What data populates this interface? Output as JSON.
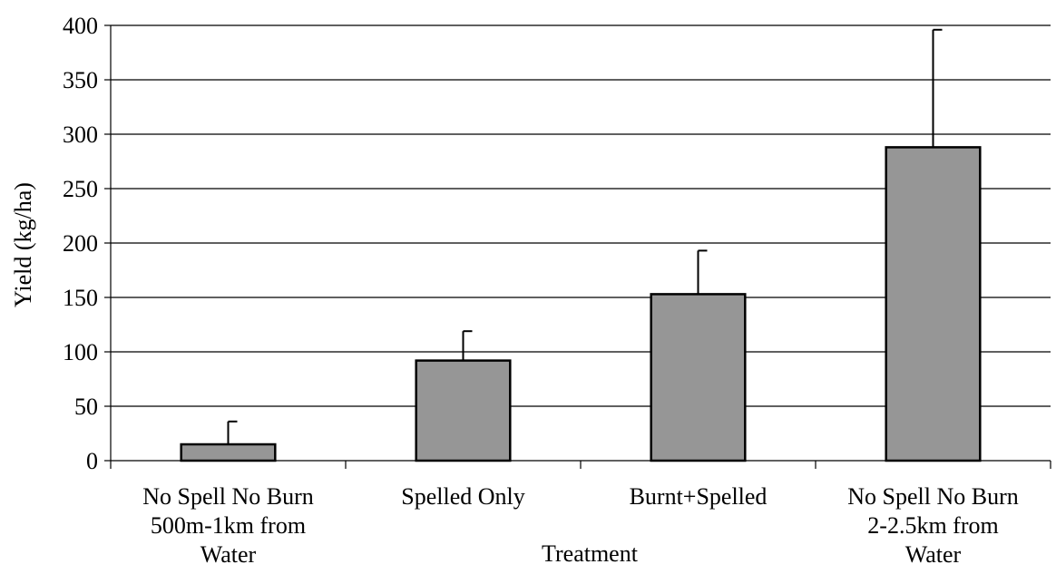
{
  "chart_data": {
    "type": "bar",
    "title": "",
    "xlabel": "Treatment",
    "ylabel": "Yield (kg/ha)",
    "ylim": [
      0,
      400
    ],
    "yticks": [
      0,
      50,
      100,
      150,
      200,
      250,
      300,
      350,
      400
    ],
    "grid": true,
    "categories": [
      [
        "No Spell No Burn",
        "500m-1km from",
        "Water"
      ],
      [
        "Spelled Only"
      ],
      [
        "Burnt+Spelled"
      ],
      [
        "No Spell No Burn",
        "2-2.5km from",
        "Water"
      ]
    ],
    "values": [
      15,
      92,
      153,
      288
    ],
    "error_upper": [
      21,
      27,
      40,
      108
    ],
    "colors": {
      "bar": "#969696",
      "bar_stroke": "#000000",
      "grid": "#000000"
    }
  }
}
